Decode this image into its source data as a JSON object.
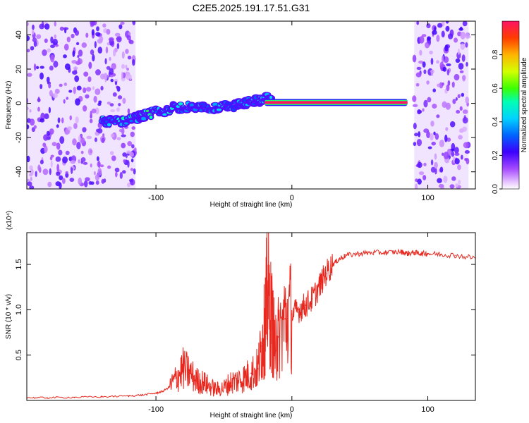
{
  "figure": {
    "title": "C2E5.2025.191.17.51.G31"
  },
  "chart_data": [
    {
      "type": "heatmap",
      "title": "C2E5.2025.191.17.51.G31",
      "xlabel": "Height of straight line (km)",
      "ylabel": "Frequency (Hz)",
      "xlim": [
        -195,
        135
      ],
      "ylim": [
        -50,
        48
      ],
      "xticks": [
        -100,
        0,
        100
      ],
      "xtick_labels": [
        "-100",
        "0",
        "100"
      ],
      "yticks": [
        -40,
        -20,
        0,
        20,
        40
      ],
      "ytick_labels": [
        "-40",
        "-20",
        "0",
        "20",
        "40"
      ],
      "colorbar": {
        "label": "Normalized spectral amplitude",
        "range": [
          0,
          1
        ],
        "ticks": [
          0.0,
          0.2,
          0.4,
          0.6,
          0.8
        ],
        "tick_labels": [
          "0.0",
          "0.2",
          "0.4",
          "0.6",
          "0.8"
        ],
        "colormap": "rainbow"
      },
      "features": {
        "noise_regions_km": [
          [
            -195,
            -115
          ],
          [
            90,
            130
          ]
        ],
        "drift_track": {
          "x_km": [
            -140,
            -120,
            -100,
            -80,
            -60,
            -40,
            -25,
            -15
          ],
          "freq_hz": [
            -11,
            -10,
            -5,
            -2,
            -3,
            -1,
            2,
            3
          ],
          "amplitude": [
            0.4,
            0.45,
            0.4,
            0.4,
            0.35,
            0.35,
            0.4,
            0.35
          ]
        },
        "steady_line": {
          "x_km": [
            -20,
            85
          ],
          "freq_hz": 0.5,
          "amplitude": 1.0
        }
      },
      "grid": false
    },
    {
      "type": "line",
      "xlabel": "Height of straight line (km)",
      "ylabel": "SNR (10 * v/v)",
      "y_multiplier": "(x10⁴)",
      "xlim": [
        -195,
        135
      ],
      "ylim": [
        0,
        1.85
      ],
      "xticks": [
        -100,
        0,
        100
      ],
      "xtick_labels": [
        "-100",
        "0",
        "100"
      ],
      "yticks": [
        0.5,
        1.0,
        1.5
      ],
      "ytick_labels": [
        "0.5",
        "1.0",
        "1.5"
      ],
      "series": [
        {
          "color": "#e8281e",
          "x": [
            -195,
            -180,
            -160,
            -140,
            -120,
            -110,
            -100,
            -95,
            -90,
            -85,
            -80,
            -75,
            -70,
            -65,
            -60,
            -55,
            -50,
            -45,
            -40,
            -35,
            -30,
            -25,
            -22,
            -20,
            -18,
            -15,
            -12,
            -10,
            -5,
            0,
            5,
            10,
            15,
            20,
            25,
            30,
            35,
            40,
            50,
            60,
            70,
            80,
            85,
            90,
            95,
            100,
            110,
            120,
            135
          ],
          "y": [
            0.03,
            0.03,
            0.035,
            0.04,
            0.05,
            0.06,
            0.08,
            0.1,
            0.15,
            0.25,
            0.35,
            0.3,
            0.22,
            0.2,
            0.15,
            0.12,
            0.14,
            0.2,
            0.22,
            0.25,
            0.3,
            0.35,
            0.6,
            0.8,
            1.2,
            0.9,
            0.55,
            0.7,
            0.9,
            0.95,
            1.0,
            1.05,
            1.12,
            1.25,
            1.4,
            1.5,
            1.56,
            1.6,
            1.62,
            1.63,
            1.63,
            1.64,
            1.62,
            1.63,
            1.62,
            1.62,
            1.61,
            1.6,
            1.57
          ]
        }
      ],
      "grid": false
    }
  ]
}
